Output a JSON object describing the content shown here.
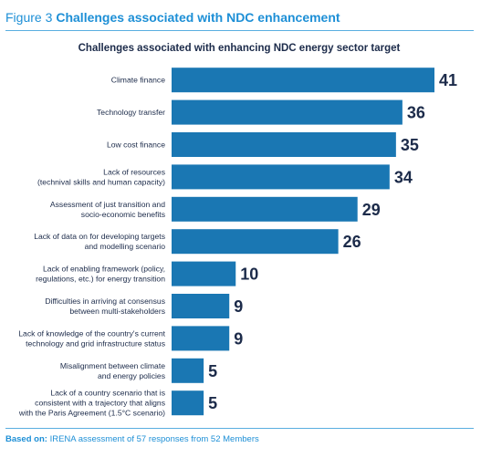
{
  "figure": {
    "label": "Figure 3",
    "title": "Challenges associated with NDC enhancement"
  },
  "footer": {
    "prefix": "Based on:",
    "text": "IRENA assessment of 57 responses from 52 Members"
  },
  "colors": {
    "bar": "#1a77b3",
    "accent": "#1d8fd6",
    "text": "#1c2b4a"
  },
  "chart_data": {
    "type": "bar",
    "orientation": "horizontal",
    "title": "Challenges associated with enhancing NDC energy sector target",
    "xlabel": "",
    "ylabel": "",
    "grid": false,
    "xlim": [
      0,
      41
    ],
    "categories": [
      [
        "Climate finance"
      ],
      [
        "Technology transfer"
      ],
      [
        "Low cost finance"
      ],
      [
        "Lack of resources",
        "(technival skills and human capacity)"
      ],
      [
        "Assessment of just transition and",
        "socio-economic benefits"
      ],
      [
        "Lack of data on for developing targets",
        "and modelling scenario"
      ],
      [
        "Lack of enabling framework (policy,",
        "regulations, etc.) for energy transition"
      ],
      [
        "Difficulties in arriving at consensus",
        "between multi-stakeholders"
      ],
      [
        "Lack of knowledge of the country's current",
        "technology and grid infrastructure status"
      ],
      [
        "Misalignment between climate",
        "and energy policies"
      ],
      [
        "Lack of a country scenario that is",
        "consistent with a trajectory that aligns",
        "with the Paris Agreement (1.5°C scenario)"
      ]
    ],
    "values": [
      41,
      36,
      35,
      34,
      29,
      26,
      10,
      9,
      9,
      5,
      5
    ]
  }
}
